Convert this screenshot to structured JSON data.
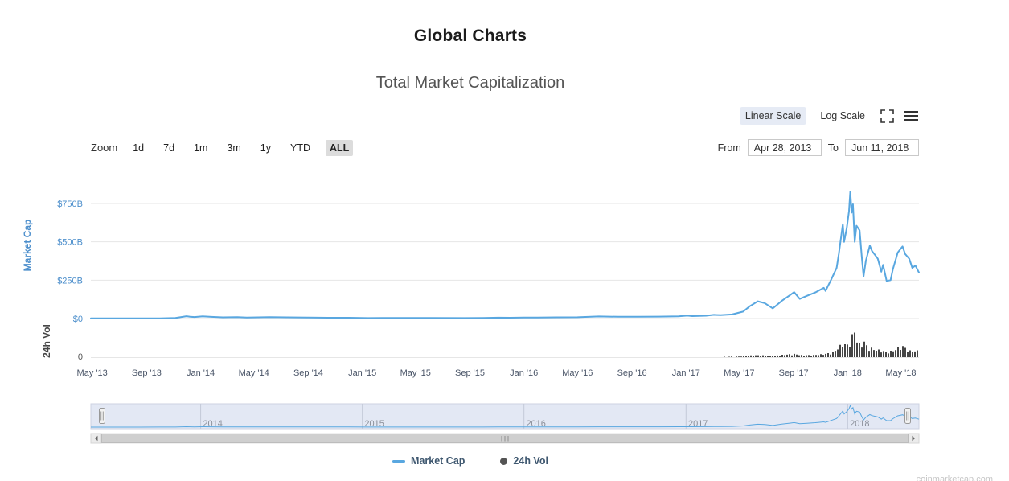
{
  "page": {
    "title": "Global Charts",
    "watermark": "coinmarketcap.com"
  },
  "scale_toggle": {
    "linear_label": "Linear Scale",
    "log_label": "Log Scale",
    "selected": "Linear Scale"
  },
  "zoom_bar": {
    "label": "Zoom",
    "buttons": [
      "1d",
      "7d",
      "1m",
      "3m",
      "1y",
      "YTD",
      "ALL"
    ],
    "selected": "ALL",
    "from_label": "From",
    "from_value": "Apr 28, 2013",
    "to_label": "To",
    "to_value": "Jun 11, 2018"
  },
  "legend": {
    "items": [
      {
        "label": "Market Cap",
        "marker": "line",
        "color": "#59a7e0"
      },
      {
        "label": "24h Vol",
        "marker": "circle",
        "color": "#545454"
      }
    ]
  },
  "chart_data": {
    "type": "line",
    "title": "Total Market Capitalization",
    "x_range": [
      "2013-04-28",
      "2018-06-11"
    ],
    "y_axis": {
      "title": "Market Cap",
      "color": "#4d8fcc",
      "tick_values": [
        0,
        250,
        500,
        750
      ],
      "tick_labels": [
        "$0",
        "$250B",
        "$500B",
        "$750B"
      ],
      "unit": "USD billions"
    },
    "y_axis2": {
      "title": "24h Vol",
      "color": "#454545",
      "tick_values": [
        0
      ],
      "tick_labels": [
        "0"
      ]
    },
    "x_ticks": [
      {
        "label": "May '13",
        "date": "2013-05-01"
      },
      {
        "label": "Sep '13",
        "date": "2013-09-01"
      },
      {
        "label": "Jan '14",
        "date": "2014-01-01"
      },
      {
        "label": "May '14",
        "date": "2014-05-01"
      },
      {
        "label": "Sep '14",
        "date": "2014-09-01"
      },
      {
        "label": "Jan '15",
        "date": "2015-01-01"
      },
      {
        "label": "May '15",
        "date": "2015-05-01"
      },
      {
        "label": "Sep '15",
        "date": "2015-09-01"
      },
      {
        "label": "Jan '16",
        "date": "2016-01-01"
      },
      {
        "label": "May '16",
        "date": "2016-05-01"
      },
      {
        "label": "Sep '16",
        "date": "2016-09-01"
      },
      {
        "label": "Jan '17",
        "date": "2017-01-01"
      },
      {
        "label": "May '17",
        "date": "2017-05-01"
      },
      {
        "label": "Sep '17",
        "date": "2017-09-01"
      },
      {
        "label": "Jan '18",
        "date": "2018-01-01"
      },
      {
        "label": "May '18",
        "date": "2018-05-01"
      }
    ],
    "navigator_years": [
      {
        "label": "2014",
        "date": "2014-01-01"
      },
      {
        "label": "2015",
        "date": "2015-01-01"
      },
      {
        "label": "2016",
        "date": "2016-01-01"
      },
      {
        "label": "2017",
        "date": "2017-01-01"
      },
      {
        "label": "2018",
        "date": "2018-01-01"
      }
    ],
    "series": [
      {
        "name": "Market Cap",
        "type": "line",
        "color": "#59a7e0",
        "unit": "USD billions",
        "points": [
          [
            "2013-04-28",
            1.5
          ],
          [
            "2013-05-15",
            1.3
          ],
          [
            "2013-07-01",
            1.1
          ],
          [
            "2013-08-15",
            1.3
          ],
          [
            "2013-10-01",
            1.6
          ],
          [
            "2013-11-05",
            3.5
          ],
          [
            "2013-11-30",
            15
          ],
          [
            "2013-12-08",
            12
          ],
          [
            "2013-12-18",
            10
          ],
          [
            "2014-01-06",
            14
          ],
          [
            "2014-01-25",
            11
          ],
          [
            "2014-02-20",
            8
          ],
          [
            "2014-03-25",
            9
          ],
          [
            "2014-04-15",
            6.5
          ],
          [
            "2014-06-05",
            8.8
          ],
          [
            "2014-07-15",
            8
          ],
          [
            "2014-09-01",
            6.5
          ],
          [
            "2014-10-15",
            5.2
          ],
          [
            "2014-12-01",
            5
          ],
          [
            "2015-01-14",
            3.2
          ],
          [
            "2015-02-15",
            4
          ],
          [
            "2015-04-01",
            3.9
          ],
          [
            "2015-06-01",
            3.6
          ],
          [
            "2015-08-20",
            3.4
          ],
          [
            "2015-10-01",
            3.9
          ],
          [
            "2015-11-04",
            5.9
          ],
          [
            "2015-12-01",
            5.2
          ],
          [
            "2016-01-01",
            7
          ],
          [
            "2016-02-01",
            6.3
          ],
          [
            "2016-03-15",
            7.8
          ],
          [
            "2016-05-01",
            8.5
          ],
          [
            "2016-06-18",
            13.5
          ],
          [
            "2016-08-01",
            11.5
          ],
          [
            "2016-09-15",
            12
          ],
          [
            "2016-11-01",
            12.8
          ],
          [
            "2016-12-15",
            14.5
          ],
          [
            "2017-01-04",
            19
          ],
          [
            "2017-01-15",
            15.5
          ],
          [
            "2017-02-15",
            18.5
          ],
          [
            "2017-03-05",
            24
          ],
          [
            "2017-03-20",
            22
          ],
          [
            "2017-04-15",
            27
          ],
          [
            "2017-05-10",
            45
          ],
          [
            "2017-05-25",
            80
          ],
          [
            "2017-06-12",
            112
          ],
          [
            "2017-06-28",
            100
          ],
          [
            "2017-07-16",
            66
          ],
          [
            "2017-08-05",
            115
          ],
          [
            "2017-08-25",
            155
          ],
          [
            "2017-09-02",
            172
          ],
          [
            "2017-09-15",
            128
          ],
          [
            "2017-10-01",
            148
          ],
          [
            "2017-10-20",
            170
          ],
          [
            "2017-11-08",
            200
          ],
          [
            "2017-11-12",
            180
          ],
          [
            "2017-11-25",
            255
          ],
          [
            "2017-12-07",
            330
          ],
          [
            "2017-12-12",
            420
          ],
          [
            "2017-12-21",
            615
          ],
          [
            "2017-12-24",
            500
          ],
          [
            "2017-12-30",
            590
          ],
          [
            "2018-01-04",
            700
          ],
          [
            "2018-01-07",
            828
          ],
          [
            "2018-01-10",
            690
          ],
          [
            "2018-01-13",
            745
          ],
          [
            "2018-01-17",
            500
          ],
          [
            "2018-01-21",
            605
          ],
          [
            "2018-01-28",
            575
          ],
          [
            "2018-02-02",
            400
          ],
          [
            "2018-02-06",
            275
          ],
          [
            "2018-02-11",
            375
          ],
          [
            "2018-02-20",
            475
          ],
          [
            "2018-02-25",
            440
          ],
          [
            "2018-03-05",
            410
          ],
          [
            "2018-03-10",
            390
          ],
          [
            "2018-03-18",
            305
          ],
          [
            "2018-03-22",
            350
          ],
          [
            "2018-03-30",
            245
          ],
          [
            "2018-04-08",
            250
          ],
          [
            "2018-04-13",
            320
          ],
          [
            "2018-04-24",
            430
          ],
          [
            "2018-05-05",
            470
          ],
          [
            "2018-05-11",
            420
          ],
          [
            "2018-05-20",
            390
          ],
          [
            "2018-05-27",
            330
          ],
          [
            "2018-06-03",
            345
          ],
          [
            "2018-06-11",
            300
          ]
        ]
      },
      {
        "name": "24h Vol",
        "type": "column",
        "color": "#454545",
        "unit": "USD billions",
        "points": [
          [
            "2013-04-28",
            0.02
          ],
          [
            "2014-01-01",
            0.05
          ],
          [
            "2015-01-01",
            0.03
          ],
          [
            "2016-01-01",
            0.08
          ],
          [
            "2016-12-01",
            0.2
          ],
          [
            "2017-03-01",
            0.6
          ],
          [
            "2017-05-01",
            1.5
          ],
          [
            "2017-05-25",
            4
          ],
          [
            "2017-06-15",
            5
          ],
          [
            "2017-07-15",
            3
          ],
          [
            "2017-08-10",
            6
          ],
          [
            "2017-09-02",
            8
          ],
          [
            "2017-09-20",
            5
          ],
          [
            "2017-10-15",
            5
          ],
          [
            "2017-11-10",
            8
          ],
          [
            "2017-11-30",
            12
          ],
          [
            "2017-12-08",
            22
          ],
          [
            "2017-12-15",
            28
          ],
          [
            "2017-12-22",
            35
          ],
          [
            "2018-01-01",
            30
          ],
          [
            "2018-01-08",
            45
          ],
          [
            "2018-01-17",
            68
          ],
          [
            "2018-01-24",
            35
          ],
          [
            "2018-02-01",
            30
          ],
          [
            "2018-02-06",
            42
          ],
          [
            "2018-02-15",
            25
          ],
          [
            "2018-03-01",
            20
          ],
          [
            "2018-03-20",
            16
          ],
          [
            "2018-04-01",
            13
          ],
          [
            "2018-04-13",
            16
          ],
          [
            "2018-04-25",
            24
          ],
          [
            "2018-05-05",
            28
          ],
          [
            "2018-05-15",
            20
          ],
          [
            "2018-05-25",
            14
          ],
          [
            "2018-06-05",
            17
          ],
          [
            "2018-06-11",
            14
          ]
        ]
      }
    ]
  }
}
